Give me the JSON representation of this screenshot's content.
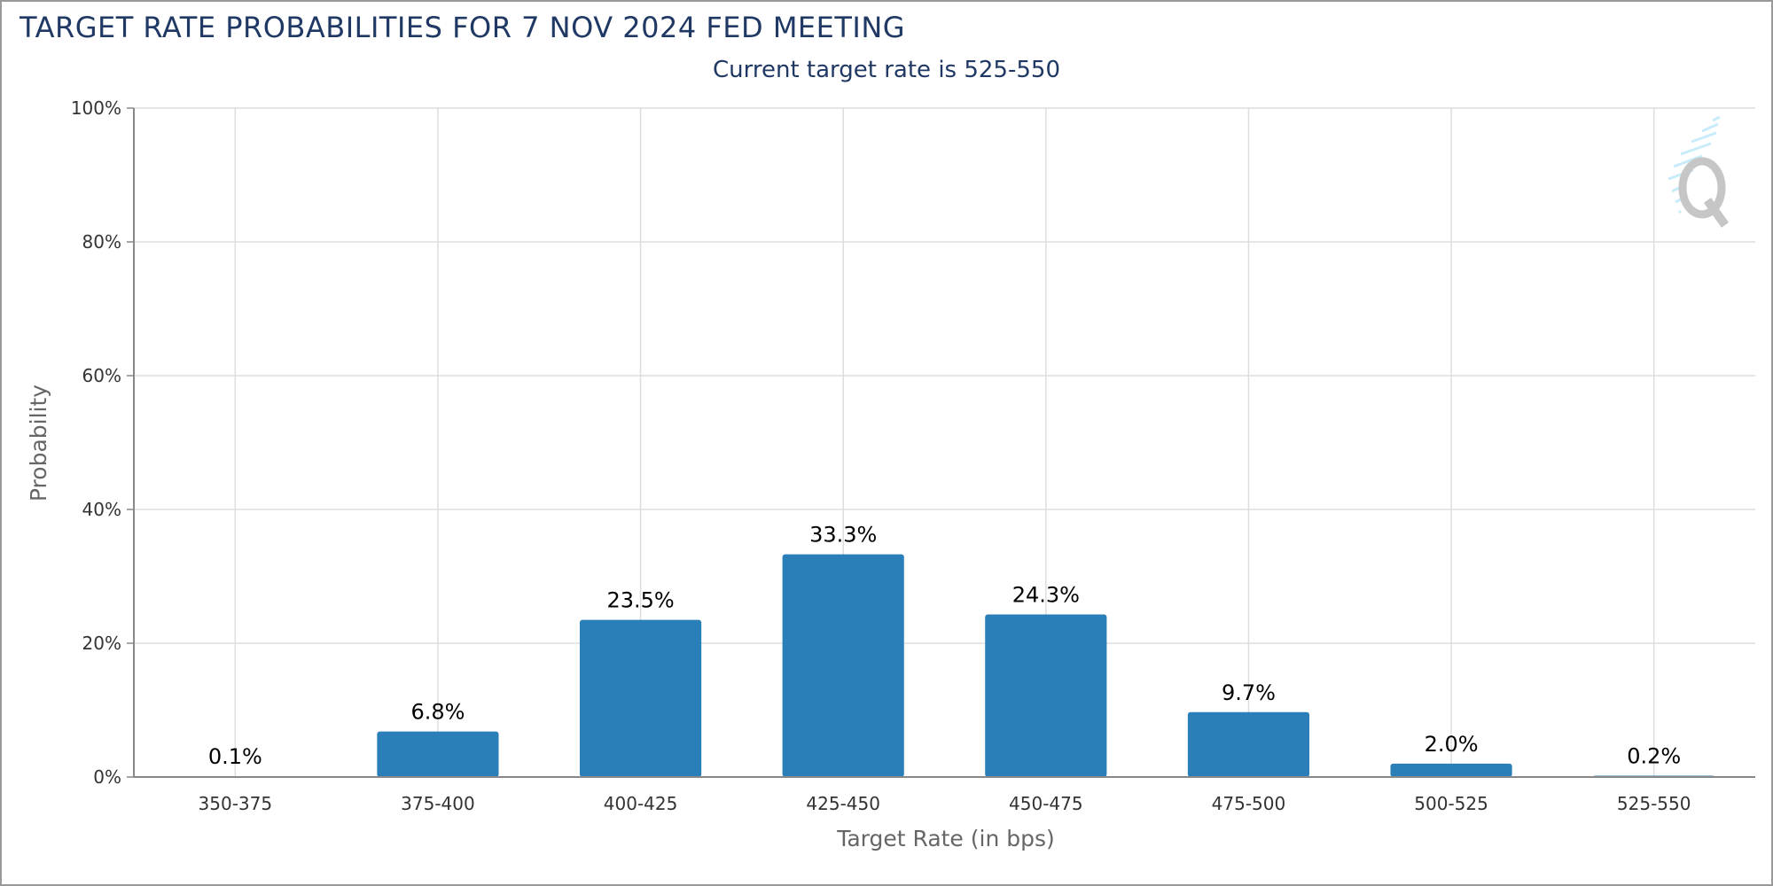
{
  "chart_data": {
    "type": "bar",
    "title": "TARGET RATE PROBABILITIES FOR 7 NOV 2024 FED MEETING",
    "subtitle": "Current target rate is 525-550",
    "xlabel": "Target Rate (in bps)",
    "ylabel": "Probability",
    "categories": [
      "350-375",
      "375-400",
      "400-425",
      "425-450",
      "450-475",
      "475-500",
      "500-525",
      "525-550"
    ],
    "values": [
      0.1,
      6.8,
      23.5,
      33.3,
      24.3,
      9.7,
      2.0,
      0.2
    ],
    "value_labels": [
      "0.1%",
      "6.8%",
      "23.5%",
      "33.3%",
      "24.3%",
      "9.7%",
      "2.0%",
      "0.2%"
    ],
    "ylim": [
      0,
      100
    ],
    "y_ticks": [
      0,
      20,
      40,
      60,
      80,
      100
    ],
    "y_tick_labels": [
      "0%",
      "20%",
      "40%",
      "60%",
      "80%",
      "100%"
    ],
    "grid": true,
    "bar_color": "#2b7fb8",
    "legend": "none",
    "watermark_icon": "q-logo-icon"
  }
}
